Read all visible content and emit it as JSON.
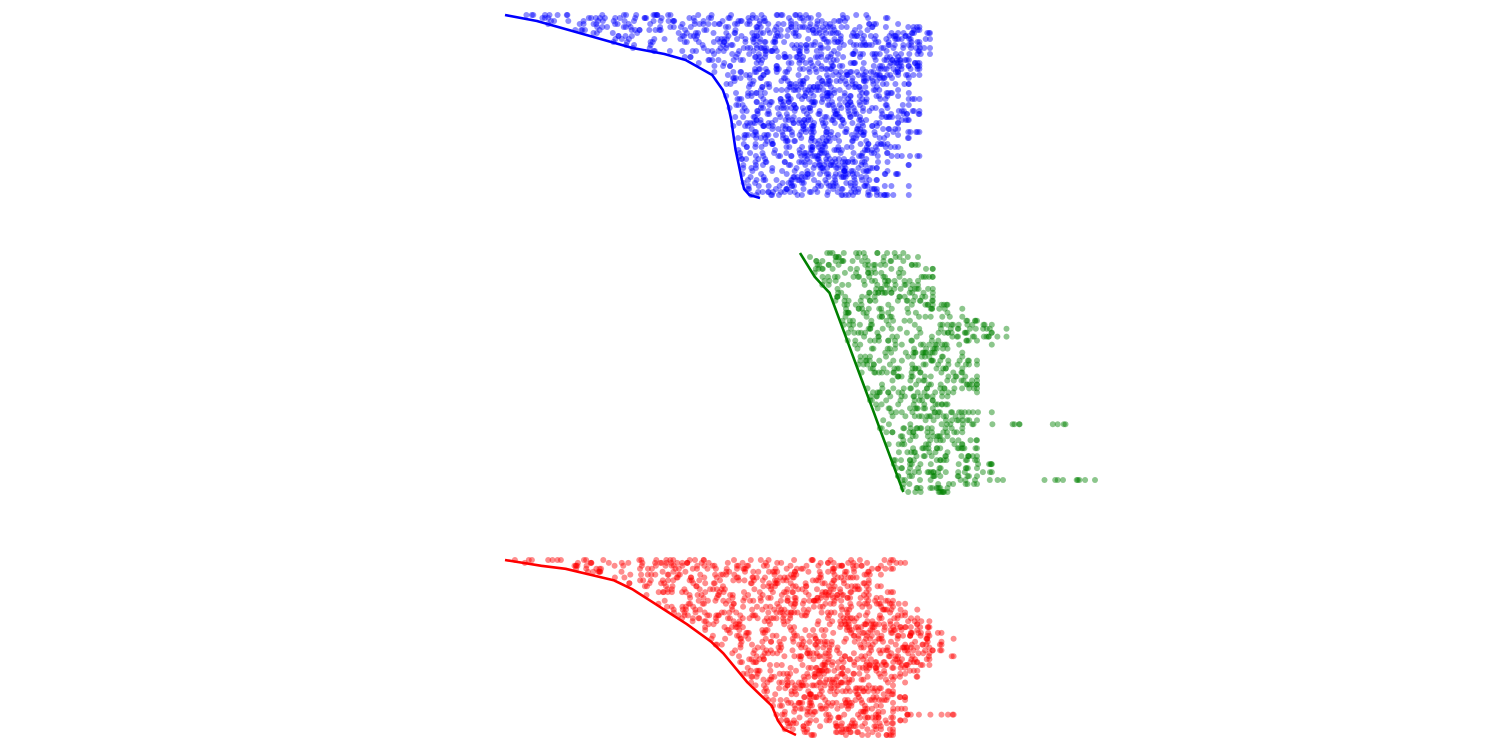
{
  "chart_data": [
    {
      "type": "scatter",
      "color": "#0000ff",
      "xlim": [
        0,
        40
      ],
      "ylim": [
        0,
        60
      ],
      "axes": false,
      "grid": false,
      "legend": "none",
      "rows": 61,
      "seed": 11,
      "row_end": [
        34,
        36,
        32,
        37,
        39,
        39,
        40,
        38,
        40,
        39,
        39,
        40,
        39,
        40,
        37,
        38,
        39,
        39,
        39,
        37,
        39,
        38,
        35,
        38,
        35,
        37,
        38,
        37,
        39,
        34,
        38,
        36,
        39,
        39,
        37,
        38,
        37,
        35,
        37,
        39,
        37,
        38,
        34,
        36,
        37,
        35,
        36,
        39,
        34,
        36,
        38,
        35,
        36,
        37,
        34,
        35,
        34,
        38,
        35,
        35,
        38
      ],
      "line": {
        "x": [
          0,
          3,
          6,
          9,
          12,
          15,
          17,
          18,
          19.5,
          20.5,
          21,
          21.3,
          21.5,
          21.7,
          22,
          22.3,
          22.5,
          23,
          24
        ],
        "y": [
          0,
          2,
          5,
          8,
          11,
          13,
          15,
          17,
          20,
          25,
          30,
          35,
          40,
          45,
          50,
          55,
          58,
          60,
          61
        ]
      }
    },
    {
      "type": "scatter",
      "color": "#008000",
      "xlim": [
        0,
        40
      ],
      "ylim": [
        0,
        60
      ],
      "axes": false,
      "grid": false,
      "legend": "none",
      "rows": 61,
      "seed": 23,
      "row_end": [
        27,
        28,
        27,
        28,
        29,
        27,
        29,
        28,
        28,
        29,
        29,
        29,
        29,
        30,
        31,
        30,
        31,
        32,
        33,
        34,
        33,
        34,
        32,
        33,
        30,
        31,
        31,
        32,
        32,
        31,
        31,
        32,
        32,
        32,
        32,
        32,
        30,
        29,
        30,
        29,
        33,
        31,
        32,
        38,
        31,
        31,
        30,
        32,
        31,
        32,
        30,
        32,
        32,
        33,
        32,
        33,
        32,
        40,
        32,
        30,
        30
      ],
      "line": {
        "x": [
          20,
          20.5,
          21,
          21.5,
          22,
          22.5,
          23,
          23.5,
          24,
          24.5,
          25,
          25.5,
          26,
          26.5,
          27
        ],
        "y": [
          0,
          3,
          6,
          8,
          10,
          15,
          20,
          25,
          30,
          35,
          40,
          45,
          50,
          55,
          60
        ]
      }
    },
    {
      "type": "scatter",
      "color": "#ff0000",
      "xlim": [
        0,
        40
      ],
      "ylim": [
        0,
        60
      ],
      "axes": false,
      "grid": false,
      "legend": "none",
      "rows": 61,
      "seed": 37,
      "row_end": [
        32,
        33,
        31,
        32,
        30,
        31,
        29,
        30,
        30,
        31,
        30,
        32,
        30,
        31,
        32,
        33,
        32,
        34,
        33,
        33,
        34,
        35,
        34,
        35,
        34,
        36,
        35,
        37,
        36,
        36,
        35,
        36,
        35,
        37,
        35,
        34,
        35,
        33,
        34,
        33,
        34,
        32,
        33,
        32,
        31,
        32,
        32,
        33,
        33,
        32,
        31,
        33,
        32,
        37,
        32,
        33,
        32,
        31,
        32,
        32,
        32
      ],
      "line": {
        "x": [
          0,
          1.5,
          3,
          5,
          7,
          9,
          10.5,
          12,
          13.5,
          15,
          16,
          17,
          18,
          19,
          20,
          21,
          22,
          22.5,
          23,
          24
        ],
        "y": [
          0,
          1,
          2,
          3,
          5,
          7,
          10,
          14,
          18,
          22,
          25,
          28,
          32,
          37,
          42,
          46,
          50,
          55,
          58,
          60
        ]
      }
    }
  ]
}
